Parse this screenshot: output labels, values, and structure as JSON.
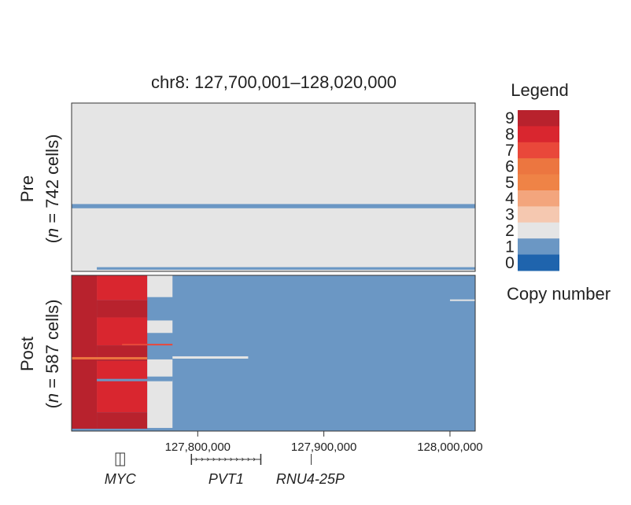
{
  "chart_data": {
    "type": "heatmap",
    "title": "chr8: 127,700,001–128,020,000",
    "xlim": [
      127700001,
      128020000
    ],
    "x_ticks": [
      {
        "value": 127800000,
        "label": "127,800,000"
      },
      {
        "value": 127900000,
        "label": "127,900,000"
      },
      {
        "value": 128000000,
        "label": "128,000,000"
      }
    ],
    "panels": [
      {
        "name_line1": "Pre",
        "name_line2_prefix": "(",
        "name_line2_italic": "n",
        "name_line2_suffix": " = 742 cells)",
        "background_copy_number": 2,
        "bands": [
          {
            "x_start": 127700001,
            "x_end": 128020000,
            "row_start": 0.6,
            "row_end": 0.625,
            "copy_number": 1
          },
          {
            "x_start": 127720000,
            "x_end": 128020000,
            "row_start": 0.975,
            "row_end": 0.99,
            "copy_number": 1
          }
        ]
      },
      {
        "name_line1": "Post",
        "name_line2_prefix": "(",
        "name_line2_italic": "n",
        "name_line2_suffix": " = 587 cells)",
        "background_copy_number": 1,
        "bands": [
          {
            "x_start": 127700001,
            "x_end": 127720000,
            "row_start": 0.0,
            "row_end": 1.0,
            "copy_number": 9
          },
          {
            "x_start": 127720000,
            "x_end": 127760000,
            "row_start": 0.0,
            "row_end": 0.16,
            "copy_number": 8
          },
          {
            "x_start": 127720000,
            "x_end": 127760000,
            "row_start": 0.16,
            "row_end": 0.27,
            "copy_number": 9
          },
          {
            "x_start": 127720000,
            "x_end": 127760000,
            "row_start": 0.27,
            "row_end": 0.45,
            "copy_number": 8
          },
          {
            "x_start": 127720000,
            "x_end": 127760000,
            "row_start": 0.45,
            "row_end": 0.55,
            "copy_number": 9
          },
          {
            "x_start": 127720000,
            "x_end": 127760000,
            "row_start": 0.55,
            "row_end": 0.88,
            "copy_number": 8
          },
          {
            "x_start": 127720000,
            "x_end": 127760000,
            "row_start": 0.88,
            "row_end": 1.0,
            "copy_number": 9
          },
          {
            "x_start": 127760000,
            "x_end": 127780000,
            "row_start": 0.0,
            "row_end": 0.14,
            "copy_number": 2
          },
          {
            "x_start": 127760000,
            "x_end": 127780000,
            "row_start": 0.29,
            "row_end": 0.37,
            "copy_number": 2
          },
          {
            "x_start": 127760000,
            "x_end": 127780000,
            "row_start": 0.54,
            "row_end": 0.65,
            "copy_number": 2
          },
          {
            "x_start": 127760000,
            "x_end": 127780000,
            "row_start": 0.67,
            "row_end": 0.98,
            "copy_number": 2
          },
          {
            "x_start": 127780000,
            "x_end": 127840000,
            "row_start": 0.52,
            "row_end": 0.535,
            "copy_number": 2
          },
          {
            "x_start": 128000000,
            "x_end": 128020000,
            "row_start": 0.155,
            "row_end": 0.165,
            "copy_number": 2
          },
          {
            "x_start": 127740000,
            "x_end": 127780000,
            "row_start": 0.44,
            "row_end": 0.45,
            "copy_number": 7
          },
          {
            "x_start": 127700001,
            "x_end": 127760000,
            "row_start": 0.525,
            "row_end": 0.54,
            "copy_number": 6
          },
          {
            "x_start": 127720000,
            "x_end": 127780000,
            "row_start": 0.665,
            "row_end": 0.68,
            "copy_number": 1
          },
          {
            "x_start": 127700001,
            "x_end": 128020000,
            "row_start": 0.985,
            "row_end": 1.0,
            "copy_number": 1
          }
        ]
      }
    ],
    "legend": {
      "title": "Legend",
      "subtitle": "Copy number",
      "placement": "right",
      "entries": [
        {
          "label": "9",
          "color": "#b8222d"
        },
        {
          "label": "8",
          "color": "#d9262f"
        },
        {
          "label": "7",
          "color": "#e9483a"
        },
        {
          "label": "6",
          "color": "#ec7640"
        },
        {
          "label": "5",
          "color": "#ef8346"
        },
        {
          "label": "4",
          "color": "#f3a57d"
        },
        {
          "label": "3",
          "color": "#f5c8b0"
        },
        {
          "label": "2",
          "color": "#e5e5e5"
        },
        {
          "label": "1",
          "color": "#6b97c4"
        },
        {
          "label": "0",
          "color": "#1f64ad"
        }
      ]
    },
    "genes": [
      {
        "name": "MYC",
        "start": 127735000,
        "end": 127742000
      },
      {
        "name": "PVT1",
        "start": 127795000,
        "end": 127850000
      },
      {
        "name": "RNU4-25P",
        "start": 127890000,
        "end": 127891000
      }
    ]
  }
}
